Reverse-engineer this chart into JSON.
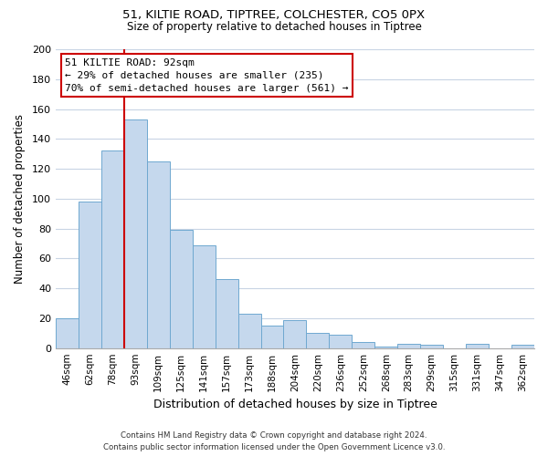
{
  "title": "51, KILTIE ROAD, TIPTREE, COLCHESTER, CO5 0PX",
  "subtitle": "Size of property relative to detached houses in Tiptree",
  "xlabel": "Distribution of detached houses by size in Tiptree",
  "ylabel": "Number of detached properties",
  "categories": [
    "46sqm",
    "62sqm",
    "78sqm",
    "93sqm",
    "109sqm",
    "125sqm",
    "141sqm",
    "157sqm",
    "173sqm",
    "188sqm",
    "204sqm",
    "220sqm",
    "236sqm",
    "252sqm",
    "268sqm",
    "283sqm",
    "299sqm",
    "315sqm",
    "331sqm",
    "347sqm",
    "362sqm"
  ],
  "values": [
    20,
    98,
    132,
    153,
    125,
    79,
    69,
    46,
    23,
    15,
    19,
    10,
    9,
    4,
    1,
    3,
    2,
    0,
    3,
    0,
    2
  ],
  "bar_color": "#c5d8ed",
  "bar_edge_color": "#6fa8d0",
  "vline_x_index": 3,
  "vline_color": "#cc0000",
  "annotation_title": "51 KILTIE ROAD: 92sqm",
  "annotation_line1": "← 29% of detached houses are smaller (235)",
  "annotation_line2": "70% of semi-detached houses are larger (561) →",
  "annotation_box_color": "#ffffff",
  "annotation_box_edge_color": "#cc0000",
  "ylim": [
    0,
    200
  ],
  "yticks": [
    0,
    20,
    40,
    60,
    80,
    100,
    120,
    140,
    160,
    180,
    200
  ],
  "footer_line1": "Contains HM Land Registry data © Crown copyright and database right 2024.",
  "footer_line2": "Contains public sector information licensed under the Open Government Licence v3.0.",
  "background_color": "#ffffff",
  "grid_color": "#c8d4e4"
}
